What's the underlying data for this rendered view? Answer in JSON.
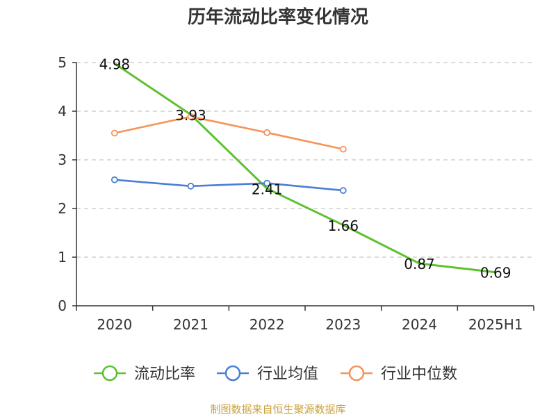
{
  "chart_data": {
    "type": "line",
    "title": "历年流动比率变化情况",
    "categories": [
      "2020",
      "2021",
      "2022",
      "2023",
      "2024",
      "2025H1"
    ],
    "ylim": [
      0,
      5
    ],
    "yticks": [
      0,
      1,
      2,
      3,
      4,
      5
    ],
    "grid": "horizontal-dashed",
    "legend_position": "bottom",
    "series": [
      {
        "name": "流动比率",
        "color": "#5ec12f",
        "values": [
          4.98,
          3.93,
          2.41,
          1.66,
          0.87,
          0.69
        ],
        "labels": [
          "4.98",
          "3.93",
          "2.41",
          "1.66",
          "0.87",
          "0.69"
        ]
      },
      {
        "name": "行业均值",
        "color": "#4a7fd6",
        "values": [
          2.59,
          2.46,
          2.52,
          2.37,
          null,
          null
        ]
      },
      {
        "name": "行业中位数",
        "color": "#f5935a",
        "values": [
          3.55,
          3.89,
          3.56,
          3.22,
          null,
          null
        ]
      }
    ]
  },
  "footer": {
    "source": "制图数据来自恒生聚源数据库"
  }
}
